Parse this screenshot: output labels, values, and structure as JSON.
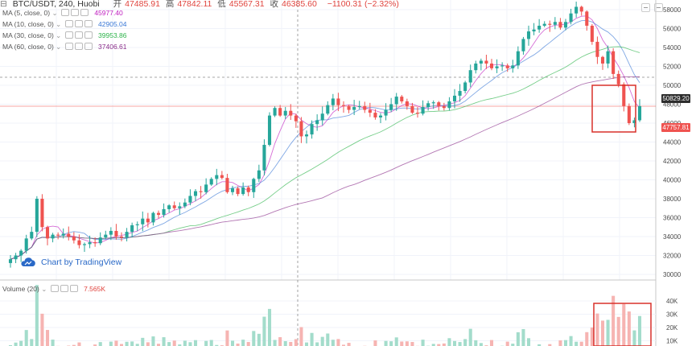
{
  "header": {
    "symbol": "BTC/USDT, 240, Huobi",
    "open_label": "开",
    "open": "47485.91",
    "high_label": "高",
    "high": "47842.11",
    "low_label": "低",
    "low": "45567.31",
    "close_label": "收",
    "close": "46385.60",
    "change": "−1100.31 (−2.32%)"
  },
  "indicators": [
    {
      "label": "MA (5, close, 0)",
      "value": "45977.40",
      "color": "#c020c0"
    },
    {
      "label": "MA (10, close, 0)",
      "value": "42905.04",
      "color": "#3a78d6"
    },
    {
      "label": "MA (30, close, 0)",
      "value": "39953.86",
      "color": "#2db34a"
    },
    {
      "label": "MA (60, close, 0)",
      "value": "37406.61",
      "color": "#8a2e8a"
    }
  ],
  "price_badges": {
    "crosshair": "50829.20",
    "last": "47757.81"
  },
  "branding": {
    "text": "Chart by TradingView"
  },
  "volume": {
    "label": "Volume (20)",
    "value": "7.565K"
  },
  "colors": {
    "up": "#26a69a",
    "down": "#ef5350",
    "up_light": "#a3dccb",
    "down_light": "#f6b4b2",
    "highlight": "#d9302a"
  },
  "chart_data": {
    "type": "candlestick",
    "price_axis": {
      "min": 30000,
      "max": 58000,
      "ticks": [
        58000,
        56000,
        54000,
        52000,
        50000,
        48000,
        46000,
        44000,
        42000,
        40000,
        38000,
        36000,
        34000,
        32000,
        30000
      ]
    },
    "volume_axis": {
      "ticks": [
        "40K",
        "30K",
        "20K",
        "10K"
      ],
      "tick_values": [
        40000,
        30000,
        20000,
        10000
      ]
    },
    "close": [
      31600,
      32000,
      32500,
      33800,
      34500,
      38000,
      35000,
      33800,
      34200,
      34100,
      34300,
      34000,
      33600,
      33100,
      33200,
      33400,
      33300,
      33900,
      34200,
      34600,
      34000,
      33900,
      34500,
      35200,
      35300,
      35900,
      35500,
      36500,
      36300,
      36900,
      37300,
      37000,
      37200,
      37600,
      38300,
      38800,
      38700,
      39500,
      40100,
      40500,
      40200,
      38700,
      39100,
      38500,
      39200,
      38700,
      40100,
      41000,
      43700,
      46800,
      47600,
      46800,
      47300,
      46800,
      46200,
      44600,
      44800,
      45900,
      46300,
      47000,
      47900,
      48600,
      47900,
      47800,
      47400,
      47700,
      47800,
      47400,
      47100,
      46600,
      46800,
      47400,
      48000,
      48800,
      48300,
      47800,
      47100,
      47000,
      47700,
      48100,
      48200,
      47800,
      47600,
      48300,
      48900,
      49400,
      50300,
      51600,
      52300,
      52600,
      52300,
      51800,
      52000,
      52100,
      51800,
      52100,
      53600,
      54900,
      55700,
      55900,
      56300,
      56500,
      56400,
      56700,
      56100,
      56700,
      57600,
      58300,
      57800,
      56300,
      54600,
      53000,
      52300,
      53600,
      51200,
      50100,
      47800,
      46000,
      46300,
      47800
    ]
  }
}
